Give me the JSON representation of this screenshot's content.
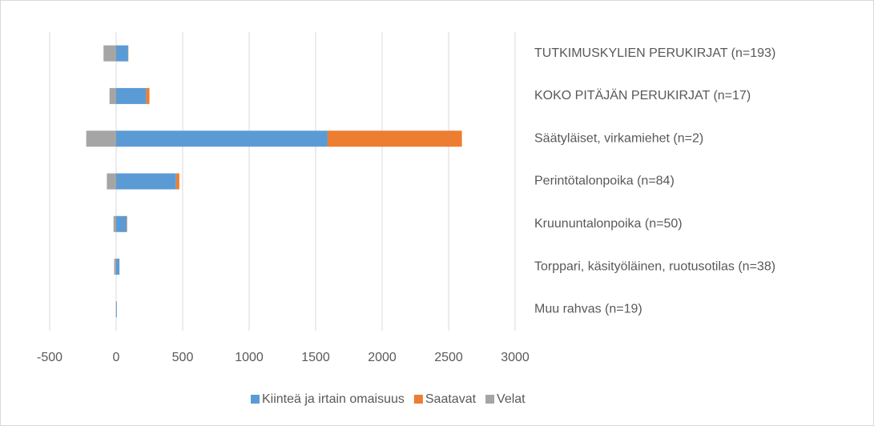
{
  "chart_data": {
    "type": "stacked_barh",
    "categories": [
      "TUTKIMUSKYLIEN PERUKIRJAT (n=193)",
      "KOKO PITÄJÄN PERUKIRJAT (n=17)",
      "Säätyläiset, virkamiehet (n=2)",
      "Perintötalonpoika (n=84)",
      "Kruununtalonpoika (n=50)",
      "Torppari, käsityöläinen, ruotusotilas (n=38)",
      "Muu rahvas (n=19)"
    ],
    "series": [
      {
        "name": "Kiinteä ja irtain omaisuus",
        "color": "#5b9bd5",
        "values": [
          90,
          225,
          1590,
          450,
          80,
          25,
          5
        ]
      },
      {
        "name": "Saatavat",
        "color": "#ed7d31",
        "values": [
          2,
          25,
          1010,
          25,
          3,
          0,
          0
        ]
      },
      {
        "name": "Velat",
        "color": "#a5a5a5",
        "values": [
          -95,
          -50,
          -225,
          -70,
          -20,
          -15,
          -3
        ]
      }
    ],
    "xlim": [
      -500,
      3000
    ],
    "xticks": [
      -500,
      0,
      500,
      1000,
      1500,
      2000,
      2500,
      3000
    ],
    "grid": true,
    "legend": "bottom"
  }
}
